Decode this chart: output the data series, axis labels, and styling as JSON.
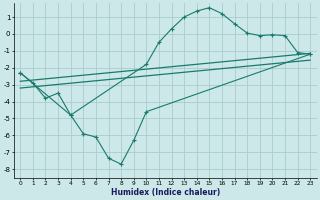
{
  "title": "",
  "xlabel": "Humidex (Indice chaleur)",
  "ylabel": "",
  "xlim": [
    -0.5,
    23.5
  ],
  "ylim": [
    -8.5,
    1.8
  ],
  "yticks": [
    1,
    0,
    -1,
    -2,
    -3,
    -4,
    -5,
    -6,
    -7,
    -8
  ],
  "xticks": [
    0,
    1,
    2,
    3,
    4,
    5,
    6,
    7,
    8,
    9,
    10,
    11,
    12,
    13,
    14,
    15,
    16,
    17,
    18,
    19,
    20,
    21,
    22,
    23
  ],
  "bg_color": "#cce8e8",
  "grid_color": "#aacccc",
  "line_color": "#1a7a6e",
  "line1_x": [
    0,
    1,
    2,
    3,
    4,
    10,
    11,
    12,
    13,
    14,
    15,
    16,
    17,
    18,
    19,
    20,
    21,
    22,
    23
  ],
  "line1_y": [
    -2.3,
    -2.9,
    -3.8,
    -3.5,
    -4.8,
    -1.8,
    -0.5,
    0.3,
    1.0,
    1.35,
    1.55,
    1.2,
    0.6,
    0.05,
    -0.1,
    -0.05,
    -0.1,
    -1.1,
    -1.2
  ],
  "line2_x": [
    0,
    4,
    5,
    6,
    7,
    8,
    9,
    10,
    23
  ],
  "line2_y": [
    -2.3,
    -4.8,
    -5.9,
    -6.1,
    -7.35,
    -7.7,
    -6.3,
    -4.6,
    -1.2
  ],
  "line3_x": [
    0,
    23
  ],
  "line3_y": [
    -2.8,
    -1.15
  ],
  "line4_x": [
    0,
    23
  ],
  "line4_y": [
    -3.2,
    -1.55
  ]
}
